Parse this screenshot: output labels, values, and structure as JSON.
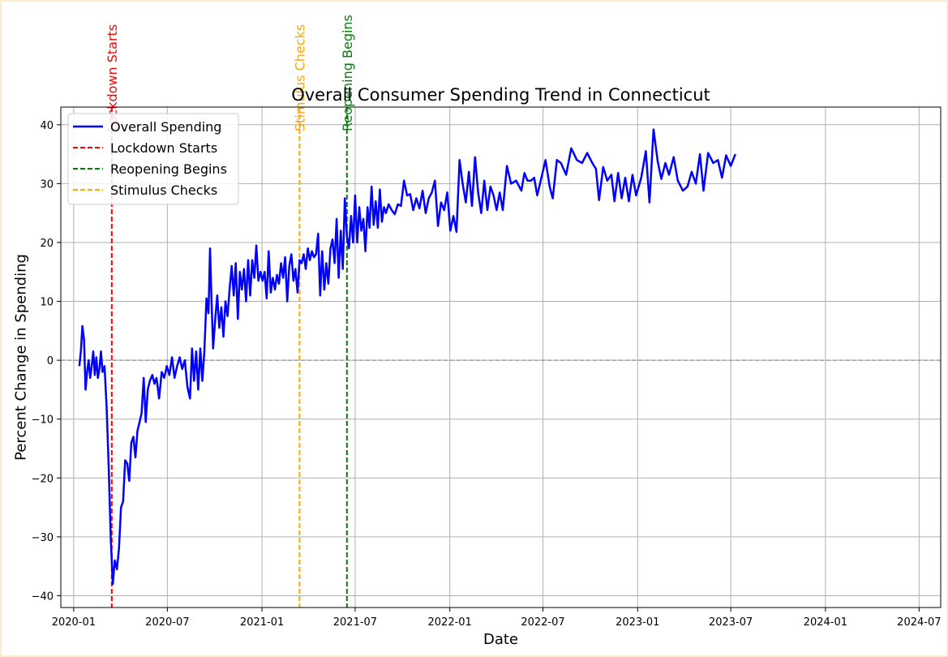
{
  "chart_data": {
    "type": "line",
    "title": "Overall Consumer Spending Trend in Connecticut",
    "xlabel": "Date",
    "ylabel": "Percent Change in Spending",
    "xlim": [
      "2019-12-07",
      "2024-08-12"
    ],
    "ylim": [
      -42,
      43
    ],
    "grid": true,
    "legend_position": "top-left",
    "x_ticks": [
      "2020-01",
      "2020-07",
      "2021-01",
      "2021-07",
      "2022-01",
      "2022-07",
      "2023-01",
      "2023-07",
      "2024-01",
      "2024-07"
    ],
    "y_ticks": [
      -40,
      -30,
      -20,
      -10,
      0,
      10,
      20,
      30,
      40
    ],
    "zero_line": 0,
    "series": [
      {
        "name": "Overall Spending",
        "color": "#0000ff",
        "points": [
          [
            "2020-01-12",
            -1
          ],
          [
            "2020-01-15",
            1.5
          ],
          [
            "2020-01-18",
            5.8
          ],
          [
            "2020-01-21",
            3.5
          ],
          [
            "2020-01-24",
            -5
          ],
          [
            "2020-01-27",
            -2
          ],
          [
            "2020-01-30",
            0
          ],
          [
            "2020-02-02",
            -3
          ],
          [
            "2020-02-05",
            -1
          ],
          [
            "2020-02-08",
            1.5
          ],
          [
            "2020-02-11",
            -2.5
          ],
          [
            "2020-02-14",
            0.5
          ],
          [
            "2020-02-17",
            -3
          ],
          [
            "2020-02-20",
            -1.5
          ],
          [
            "2020-02-23",
            1.5
          ],
          [
            "2020-02-26",
            -2
          ],
          [
            "2020-03-01",
            -1
          ],
          [
            "2020-03-05",
            -8
          ],
          [
            "2020-03-09",
            -18
          ],
          [
            "2020-03-13",
            -30
          ],
          [
            "2020-03-17",
            -38
          ],
          [
            "2020-03-21",
            -34
          ],
          [
            "2020-03-25",
            -35.5
          ],
          [
            "2020-03-29",
            -32
          ],
          [
            "2020-04-02",
            -25
          ],
          [
            "2020-04-06",
            -24
          ],
          [
            "2020-04-10",
            -17
          ],
          [
            "2020-04-14",
            -17.5
          ],
          [
            "2020-04-18",
            -20.5
          ],
          [
            "2020-04-22",
            -14
          ],
          [
            "2020-04-26",
            -13
          ],
          [
            "2020-04-30",
            -16.5
          ],
          [
            "2020-05-04",
            -12
          ],
          [
            "2020-05-08",
            -10.5
          ],
          [
            "2020-05-12",
            -9
          ],
          [
            "2020-05-16",
            -3
          ],
          [
            "2020-05-20",
            -10.5
          ],
          [
            "2020-05-24",
            -5
          ],
          [
            "2020-05-28",
            -3.5
          ],
          [
            "2020-06-02",
            -2.5
          ],
          [
            "2020-06-06",
            -4
          ],
          [
            "2020-06-10",
            -3
          ],
          [
            "2020-06-15",
            -6.5
          ],
          [
            "2020-06-20",
            -2
          ],
          [
            "2020-06-25",
            -3
          ],
          [
            "2020-06-30",
            -1
          ],
          [
            "2020-07-05",
            -2.5
          ],
          [
            "2020-07-10",
            0.5
          ],
          [
            "2020-07-15",
            -3
          ],
          [
            "2020-07-20",
            -1
          ],
          [
            "2020-07-25",
            0.5
          ],
          [
            "2020-07-30",
            -1.5
          ],
          [
            "2020-08-04",
            0
          ],
          [
            "2020-08-09",
            -4.5
          ],
          [
            "2020-08-14",
            -6.5
          ],
          [
            "2020-08-18",
            2
          ],
          [
            "2020-08-22",
            -3.5
          ],
          [
            "2020-08-26",
            1.5
          ],
          [
            "2020-08-30",
            -5
          ],
          [
            "2020-09-03",
            2
          ],
          [
            "2020-09-07",
            -3.5
          ],
          [
            "2020-09-11",
            1.5
          ],
          [
            "2020-09-15",
            10.5
          ],
          [
            "2020-09-19",
            8
          ],
          [
            "2020-09-22",
            19
          ],
          [
            "2020-09-25",
            10
          ],
          [
            "2020-09-28",
            2
          ],
          [
            "2020-10-02",
            7
          ],
          [
            "2020-10-06",
            11
          ],
          [
            "2020-10-10",
            5.5
          ],
          [
            "2020-10-14",
            9
          ],
          [
            "2020-10-18",
            4
          ],
          [
            "2020-10-22",
            10
          ],
          [
            "2020-10-26",
            7.5
          ],
          [
            "2020-10-30",
            12
          ],
          [
            "2020-11-03",
            16
          ],
          [
            "2020-11-07",
            11
          ],
          [
            "2020-11-11",
            16.5
          ],
          [
            "2020-11-15",
            7
          ],
          [
            "2020-11-19",
            15
          ],
          [
            "2020-11-23",
            12
          ],
          [
            "2020-11-27",
            15.5
          ],
          [
            "2020-12-01",
            10
          ],
          [
            "2020-12-05",
            17
          ],
          [
            "2020-12-09",
            11
          ],
          [
            "2020-12-13",
            17
          ],
          [
            "2020-12-17",
            14
          ],
          [
            "2020-12-21",
            19.5
          ],
          [
            "2020-12-25",
            13.5
          ],
          [
            "2020-12-29",
            15
          ],
          [
            "2021-01-02",
            13.5
          ],
          [
            "2021-01-06",
            15
          ],
          [
            "2021-01-10",
            10.5
          ],
          [
            "2021-01-14",
            18.5
          ],
          [
            "2021-01-18",
            11.5
          ],
          [
            "2021-01-22",
            14
          ],
          [
            "2021-01-26",
            12
          ],
          [
            "2021-01-30",
            14.5
          ],
          [
            "2021-02-03",
            13
          ],
          [
            "2021-02-07",
            16.5
          ],
          [
            "2021-02-11",
            14
          ],
          [
            "2021-02-15",
            17.5
          ],
          [
            "2021-02-19",
            10
          ],
          [
            "2021-02-23",
            16
          ],
          [
            "2021-02-27",
            18
          ],
          [
            "2021-03-03",
            13.5
          ],
          [
            "2021-03-07",
            15.5
          ],
          [
            "2021-03-11",
            11.5
          ],
          [
            "2021-03-15",
            17
          ],
          [
            "2021-03-19",
            16.5
          ],
          [
            "2021-03-23",
            18
          ],
          [
            "2021-03-27",
            15.5
          ],
          [
            "2021-03-31",
            19
          ],
          [
            "2021-04-04",
            17
          ],
          [
            "2021-04-08",
            18.5
          ],
          [
            "2021-04-12",
            17.5
          ],
          [
            "2021-04-16",
            18
          ],
          [
            "2021-04-20",
            21.5
          ],
          [
            "2021-04-24",
            11
          ],
          [
            "2021-04-28",
            18.5
          ],
          [
            "2021-05-02",
            12
          ],
          [
            "2021-05-06",
            16.5
          ],
          [
            "2021-05-10",
            13
          ],
          [
            "2021-05-14",
            19
          ],
          [
            "2021-05-18",
            20.5
          ],
          [
            "2021-05-22",
            16.5
          ],
          [
            "2021-05-26",
            24
          ],
          [
            "2021-05-30",
            14
          ],
          [
            "2021-06-03",
            22
          ],
          [
            "2021-06-07",
            15.5
          ],
          [
            "2021-06-11",
            27.5
          ],
          [
            "2021-06-15",
            21
          ],
          [
            "2021-06-19",
            19
          ],
          [
            "2021-06-23",
            24.5
          ],
          [
            "2021-06-27",
            20
          ],
          [
            "2021-07-01",
            28
          ],
          [
            "2021-07-05",
            20
          ],
          [
            "2021-07-09",
            26
          ],
          [
            "2021-07-13",
            22
          ],
          [
            "2021-07-17",
            24
          ],
          [
            "2021-07-21",
            18.5
          ],
          [
            "2021-07-25",
            26
          ],
          [
            "2021-07-29",
            22.5
          ],
          [
            "2021-08-02",
            29.5
          ],
          [
            "2021-08-06",
            23
          ],
          [
            "2021-08-10",
            27
          ],
          [
            "2021-08-14",
            22.5
          ],
          [
            "2021-08-18",
            29
          ],
          [
            "2021-08-22",
            23.5
          ],
          [
            "2021-08-26",
            26
          ],
          [
            "2021-08-30",
            25
          ],
          [
            "2021-09-04",
            26.5
          ],
          [
            "2021-09-10",
            25.5
          ],
          [
            "2021-09-16",
            24.8
          ],
          [
            "2021-09-22",
            26.5
          ],
          [
            "2021-09-28",
            26.2
          ],
          [
            "2021-10-04",
            30.5
          ],
          [
            "2021-10-10",
            28
          ],
          [
            "2021-10-16",
            28.2
          ],
          [
            "2021-10-22",
            25.5
          ],
          [
            "2021-10-28",
            27.5
          ],
          [
            "2021-11-03",
            25.8
          ],
          [
            "2021-11-09",
            28.8
          ],
          [
            "2021-11-15",
            25
          ],
          [
            "2021-11-21",
            27.5
          ],
          [
            "2021-11-27",
            28.5
          ],
          [
            "2021-12-03",
            30.5
          ],
          [
            "2021-12-09",
            22.8
          ],
          [
            "2021-12-15",
            26.8
          ],
          [
            "2021-12-21",
            25.5
          ],
          [
            "2021-12-27",
            28.5
          ],
          [
            "2022-01-02",
            22
          ],
          [
            "2022-01-08",
            24.5
          ],
          [
            "2022-01-14",
            21.8
          ],
          [
            "2022-01-20",
            34
          ],
          [
            "2022-01-26",
            30
          ],
          [
            "2022-02-01",
            26.8
          ],
          [
            "2022-02-07",
            32
          ],
          [
            "2022-02-13",
            26.2
          ],
          [
            "2022-02-19",
            34.5
          ],
          [
            "2022-02-25",
            28.5
          ],
          [
            "2022-03-03",
            25
          ],
          [
            "2022-03-09",
            30.5
          ],
          [
            "2022-03-15",
            25.5
          ],
          [
            "2022-03-21",
            29.5
          ],
          [
            "2022-03-27",
            28
          ],
          [
            "2022-04-02",
            25.5
          ],
          [
            "2022-04-08",
            28.5
          ],
          [
            "2022-04-14",
            25.5
          ],
          [
            "2022-04-22",
            33
          ],
          [
            "2022-04-30",
            30
          ],
          [
            "2022-05-10",
            30.5
          ],
          [
            "2022-05-20",
            28.8
          ],
          [
            "2022-05-26",
            31.8
          ],
          [
            "2022-06-01",
            30.5
          ],
          [
            "2022-06-08",
            30.5
          ],
          [
            "2022-06-14",
            31
          ],
          [
            "2022-06-20",
            28
          ],
          [
            "2022-06-28",
            31
          ],
          [
            "2022-07-06",
            34
          ],
          [
            "2022-07-14",
            29.5
          ],
          [
            "2022-07-20",
            27.5
          ],
          [
            "2022-07-28",
            34
          ],
          [
            "2022-08-05",
            33.5
          ],
          [
            "2022-08-15",
            31.5
          ],
          [
            "2022-08-25",
            36
          ],
          [
            "2022-09-05",
            34
          ],
          [
            "2022-09-15",
            33.5
          ],
          [
            "2022-09-25",
            35.2
          ],
          [
            "2022-10-05",
            33.5
          ],
          [
            "2022-10-12",
            32.5
          ],
          [
            "2022-10-18",
            27.2
          ],
          [
            "2022-10-26",
            32.8
          ],
          [
            "2022-11-03",
            30.5
          ],
          [
            "2022-11-11",
            31.5
          ],
          [
            "2022-11-17",
            27
          ],
          [
            "2022-11-24",
            31.8
          ],
          [
            "2022-12-01",
            27.5
          ],
          [
            "2022-12-08",
            31
          ],
          [
            "2022-12-15",
            27
          ],
          [
            "2022-12-22",
            31.5
          ],
          [
            "2022-12-29",
            28
          ],
          [
            "2023-01-08",
            31
          ],
          [
            "2023-01-17",
            35.5
          ],
          [
            "2023-01-24",
            26.8
          ],
          [
            "2023-02-01",
            39.2
          ],
          [
            "2023-02-09",
            33.8
          ],
          [
            "2023-02-16",
            30.8
          ],
          [
            "2023-02-24",
            33.5
          ],
          [
            "2023-03-03",
            31.5
          ],
          [
            "2023-03-12",
            34.5
          ],
          [
            "2023-03-20",
            30.5
          ],
          [
            "2023-03-30",
            28.8
          ],
          [
            "2023-04-08",
            29.5
          ],
          [
            "2023-04-16",
            32
          ],
          [
            "2023-04-24",
            30
          ],
          [
            "2023-05-02",
            35
          ],
          [
            "2023-05-09",
            28.8
          ],
          [
            "2023-05-18",
            35.2
          ],
          [
            "2023-05-28",
            33.5
          ],
          [
            "2023-06-06",
            34
          ],
          [
            "2023-06-14",
            31
          ],
          [
            "2023-06-22",
            34.8
          ],
          [
            "2023-07-01",
            33
          ],
          [
            "2023-07-10",
            35
          ]
        ]
      }
    ],
    "events": [
      {
        "name": "Lockdown Starts",
        "date": "2020-03-15",
        "color": "#ff0000"
      },
      {
        "name": "Stimulus Checks",
        "date": "2021-03-15",
        "color": "#ffa500"
      },
      {
        "name": "Reopening Begins",
        "date": "2021-06-15",
        "color": "#008000"
      }
    ],
    "legend": [
      {
        "label": "Overall Spending",
        "color": "#0000ff",
        "style": "solid"
      },
      {
        "label": "Lockdown Starts",
        "color": "#ff0000",
        "style": "dashed"
      },
      {
        "label": "Reopening Begins",
        "color": "#008000",
        "style": "dashed"
      },
      {
        "label": "Stimulus Checks",
        "color": "#ffa500",
        "style": "dashed"
      }
    ]
  }
}
